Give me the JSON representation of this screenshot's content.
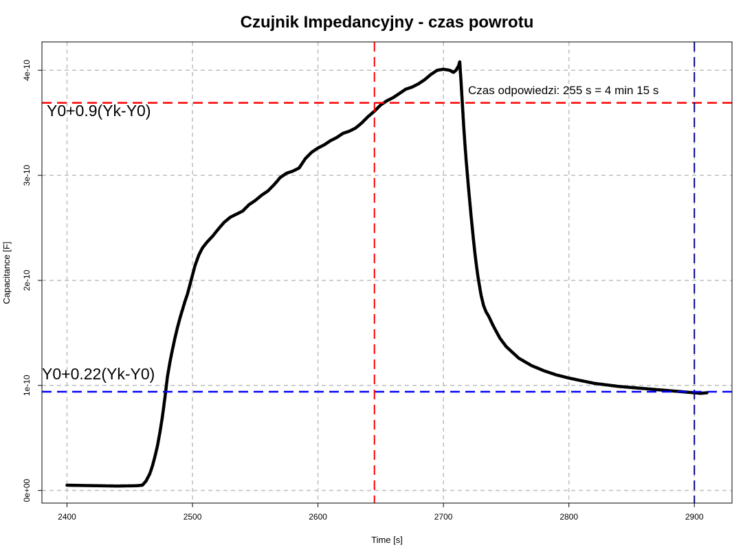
{
  "chart_data": {
    "type": "scatter",
    "title": "Czujnik Impedancyjny - czas powrotu",
    "xlabel": "Time [s]",
    "ylabel": "Capacitance [F]",
    "xlim": [
      2380,
      2930
    ],
    "ylim": [
      -1.2e-11,
      4.27e-10
    ],
    "x_ticks": [
      2400,
      2500,
      2600,
      2700,
      2800,
      2900
    ],
    "x_tick_labels": [
      "2400",
      "2500",
      "2600",
      "2700",
      "2800",
      "2900"
    ],
    "y_ticks": [
      0,
      1e-10,
      2e-10,
      3e-10,
      4e-10
    ],
    "y_tick_labels": [
      "0e+00",
      "1e-10",
      "2e-10",
      "3e-10",
      "4e-10"
    ],
    "grid": true,
    "colors": {
      "points": "#000000",
      "grid": "#bebebe",
      "level_90": "#ff0000",
      "level_22": "#0000ff",
      "vline_90": "#ff0000",
      "vline_22": "#00008b"
    },
    "reference_lines": {
      "h_upper": 3.69e-10,
      "h_lower": 9.4e-11,
      "v_left": 2645,
      "v_right": 2900
    },
    "annotations": {
      "upper_label": "Y0+0.9(Yk-Y0)",
      "lower_label": "Y0+0.22(Yk-Y0)",
      "response_label": "Czas odpowiedzi: 255 s = 4 min 15 s"
    },
    "series": [
      {
        "points": [
          [
            2400,
            5e-12
          ],
          [
            2420,
            4.6e-12
          ],
          [
            2440,
            4.2e-12
          ],
          [
            2455,
            4.5e-12
          ],
          [
            2460,
            5e-12
          ],
          [
            2463,
            9e-12
          ],
          [
            2466,
            1.6e-11
          ],
          [
            2468,
            2.3e-11
          ],
          [
            2470,
            3.2e-11
          ],
          [
            2472,
            4.2e-11
          ],
          [
            2474,
            5.5e-11
          ],
          [
            2476,
            7e-11
          ],
          [
            2478,
            8.8e-11
          ],
          [
            2480,
            1.08e-10
          ],
          [
            2482,
            1.22e-10
          ],
          [
            2484,
            1.34e-10
          ],
          [
            2486,
            1.45e-10
          ],
          [
            2488,
            1.55e-10
          ],
          [
            2490,
            1.64e-10
          ],
          [
            2492,
            1.72e-10
          ],
          [
            2494,
            1.8e-10
          ],
          [
            2496,
            1.87e-10
          ],
          [
            2498,
            1.96e-10
          ],
          [
            2500,
            2.05e-10
          ],
          [
            2502,
            2.14e-10
          ],
          [
            2505,
            2.24e-10
          ],
          [
            2508,
            2.31e-10
          ],
          [
            2512,
            2.37e-10
          ],
          [
            2516,
            2.42e-10
          ],
          [
            2520,
            2.48e-10
          ],
          [
            2525,
            2.55e-10
          ],
          [
            2530,
            2.6e-10
          ],
          [
            2535,
            2.63e-10
          ],
          [
            2540,
            2.66e-10
          ],
          [
            2545,
            2.72e-10
          ],
          [
            2550,
            2.76e-10
          ],
          [
            2555,
            2.81e-10
          ],
          [
            2560,
            2.85e-10
          ],
          [
            2565,
            2.91e-10
          ],
          [
            2570,
            2.98e-10
          ],
          [
            2575,
            3.02e-10
          ],
          [
            2580,
            3.04e-10
          ],
          [
            2585,
            3.07e-10
          ],
          [
            2590,
            3.16e-10
          ],
          [
            2595,
            3.22e-10
          ],
          [
            2600,
            3.26e-10
          ],
          [
            2605,
            3.29e-10
          ],
          [
            2610,
            3.33e-10
          ],
          [
            2615,
            3.36e-10
          ],
          [
            2620,
            3.4e-10
          ],
          [
            2625,
            3.42e-10
          ],
          [
            2630,
            3.45e-10
          ],
          [
            2635,
            3.5e-10
          ],
          [
            2640,
            3.56e-10
          ],
          [
            2645,
            3.61e-10
          ],
          [
            2650,
            3.67e-10
          ],
          [
            2655,
            3.71e-10
          ],
          [
            2660,
            3.74e-10
          ],
          [
            2665,
            3.78e-10
          ],
          [
            2670,
            3.82e-10
          ],
          [
            2675,
            3.84e-10
          ],
          [
            2680,
            3.87e-10
          ],
          [
            2685,
            3.91e-10
          ],
          [
            2690,
            3.96e-10
          ],
          [
            2695,
            4e-10
          ],
          [
            2700,
            4.01e-10
          ],
          [
            2705,
            4e-10
          ],
          [
            2708,
            3.98e-10
          ],
          [
            2710,
            4e-10
          ],
          [
            2712,
            4.04e-10
          ],
          [
            2713,
            4.08e-10
          ],
          [
            2714,
            3.9e-10
          ],
          [
            2715,
            3.7e-10
          ],
          [
            2716,
            3.5e-10
          ],
          [
            2717,
            3.32e-10
          ],
          [
            2718,
            3.16e-10
          ],
          [
            2719,
            3.02e-10
          ],
          [
            2720,
            2.88e-10
          ],
          [
            2721,
            2.75e-10
          ],
          [
            2722,
            2.62e-10
          ],
          [
            2723,
            2.5e-10
          ],
          [
            2724,
            2.38e-10
          ],
          [
            2725,
            2.27e-10
          ],
          [
            2726,
            2.17e-10
          ],
          [
            2727,
            2.08e-10
          ],
          [
            2728,
            2e-10
          ],
          [
            2730,
            1.86e-10
          ],
          [
            2732,
            1.76e-10
          ],
          [
            2734,
            1.7e-10
          ],
          [
            2736,
            1.66e-10
          ],
          [
            2740,
            1.56e-10
          ],
          [
            2745,
            1.45e-10
          ],
          [
            2750,
            1.37e-10
          ],
          [
            2760,
            1.26e-10
          ],
          [
            2770,
            1.19e-10
          ],
          [
            2780,
            1.14e-10
          ],
          [
            2790,
            1.1e-10
          ],
          [
            2800,
            1.07e-10
          ],
          [
            2820,
            1.02e-10
          ],
          [
            2840,
            9.9e-11
          ],
          [
            2860,
            9.7e-11
          ],
          [
            2880,
            9.5e-11
          ],
          [
            2900,
            9.3e-11
          ],
          [
            2905,
            9.25e-11
          ],
          [
            2910,
            9.3e-11
          ]
        ]
      }
    ]
  }
}
